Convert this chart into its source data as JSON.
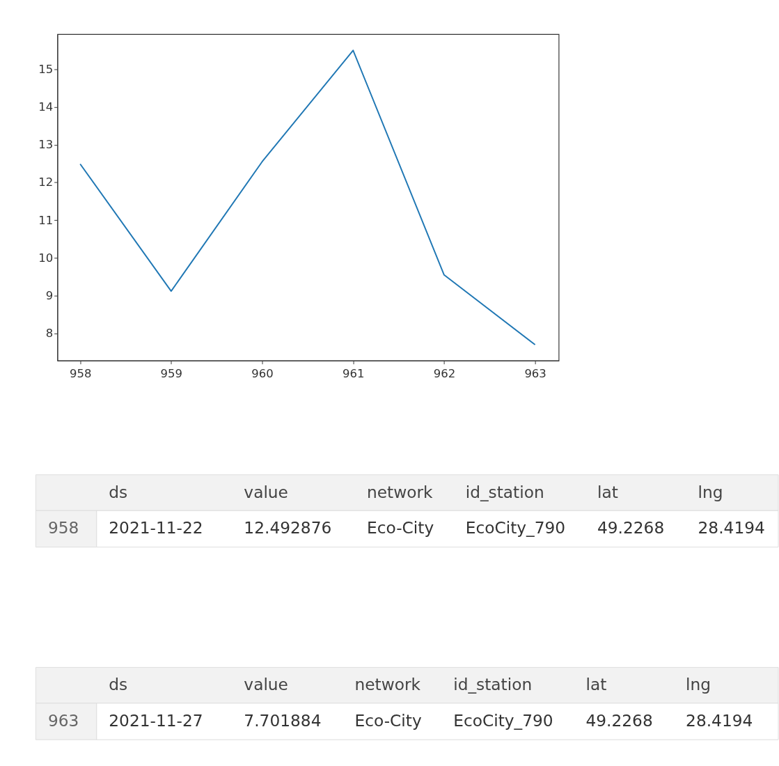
{
  "chart_data": {
    "type": "line",
    "x": [
      958,
      959,
      960,
      961,
      962,
      963
    ],
    "series": [
      {
        "color": "#1f77b4",
        "values": [
          12.49,
          9.12,
          12.55,
          15.5,
          9.55,
          7.7
        ]
      }
    ],
    "xlim": [
      957.75,
      963.26
    ],
    "xticks": [
      958,
      959,
      960,
      961,
      962,
      963
    ],
    "ylim": [
      7.28,
      15.93
    ],
    "yticks": [
      8,
      9,
      10,
      11,
      12,
      13,
      14,
      15
    ],
    "grid": false,
    "marker": "none",
    "line_style": "solid",
    "annotations": [
      "ds",
      "value",
      "network",
      "id_station",
      "lat",
      "lng",
      "958",
      "2021-11-22",
      "12.492876",
      "Eco-City",
      "EcoCity_790",
      "49.2268",
      "28.4194",
      "ds",
      "value",
      "network",
      "id_station",
      "lat",
      "lng",
      "963",
      "2021-11-27",
      "7.701884",
      "Eco-City",
      "EcoCity_790",
      "49.2268",
      "28.4194"
    ]
  }
}
